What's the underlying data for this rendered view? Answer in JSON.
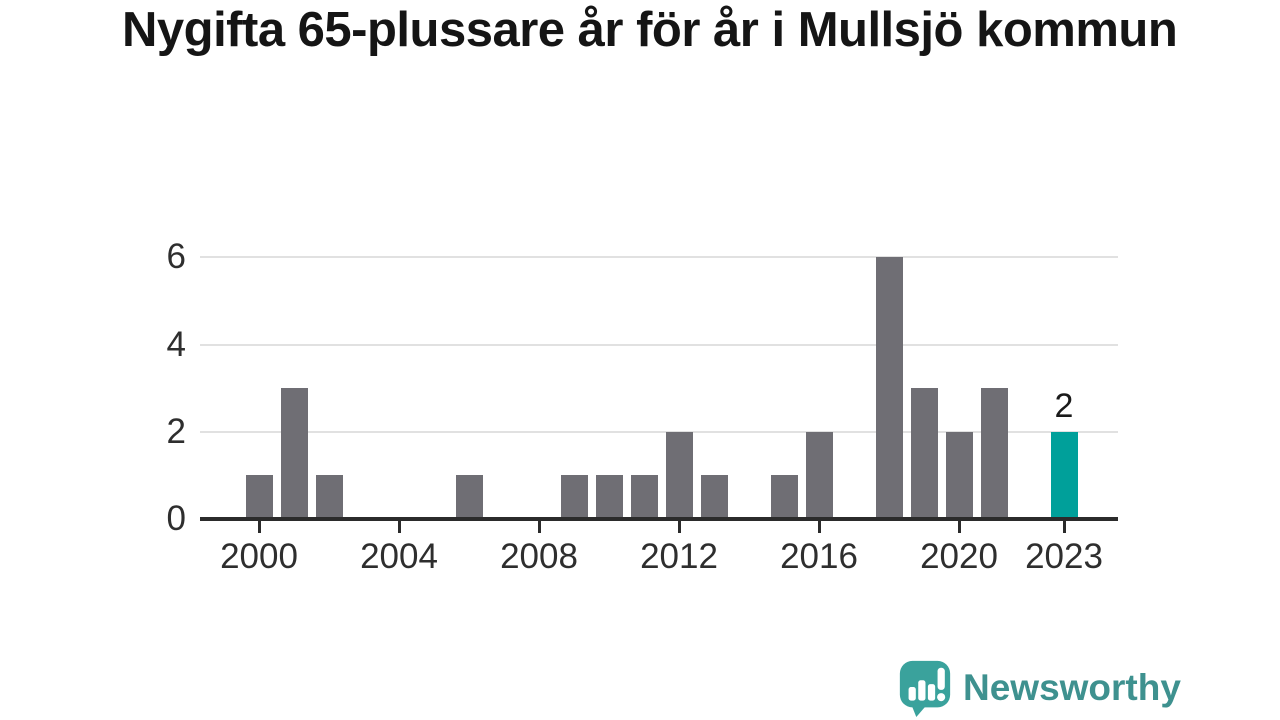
{
  "chart_data": {
    "type": "bar",
    "title": "Nygifta 65-plussare år för år i Mullsjö kommun",
    "categories": [
      "2000",
      "2001",
      "2002",
      "2003",
      "2004",
      "2005",
      "2006",
      "2007",
      "2008",
      "2009",
      "2010",
      "2011",
      "2012",
      "2013",
      "2014",
      "2015",
      "2016",
      "2017",
      "2018",
      "2019",
      "2020",
      "2021",
      "2022",
      "2023"
    ],
    "values": [
      1,
      3,
      1,
      0,
      0,
      0,
      1,
      0,
      0,
      1,
      1,
      1,
      2,
      1,
      0,
      1,
      2,
      0,
      6,
      3,
      2,
      3,
      0,
      2
    ],
    "ylim": [
      0,
      6
    ],
    "y_ticks": [
      0,
      2,
      4,
      6
    ],
    "grid_values": [
      2,
      4,
      6
    ],
    "x_tick_labels": [
      "2000",
      "2004",
      "2008",
      "2012",
      "2016",
      "2020",
      "2023"
    ],
    "highlight_category": "2023",
    "annotation": {
      "category": "2023",
      "label": "2"
    },
    "legend": "none",
    "grid": "horizontal",
    "colors": {
      "bar": "#6f6e74",
      "highlight": "#00a09a",
      "grid": "#e1e1e1",
      "axis": "#2b2b2b",
      "labels": "#2e2e2e"
    }
  },
  "branding": {
    "wordmark": "Newsworthy",
    "colors": {
      "icon": "#3aa29c",
      "text": "#3e918f"
    }
  }
}
